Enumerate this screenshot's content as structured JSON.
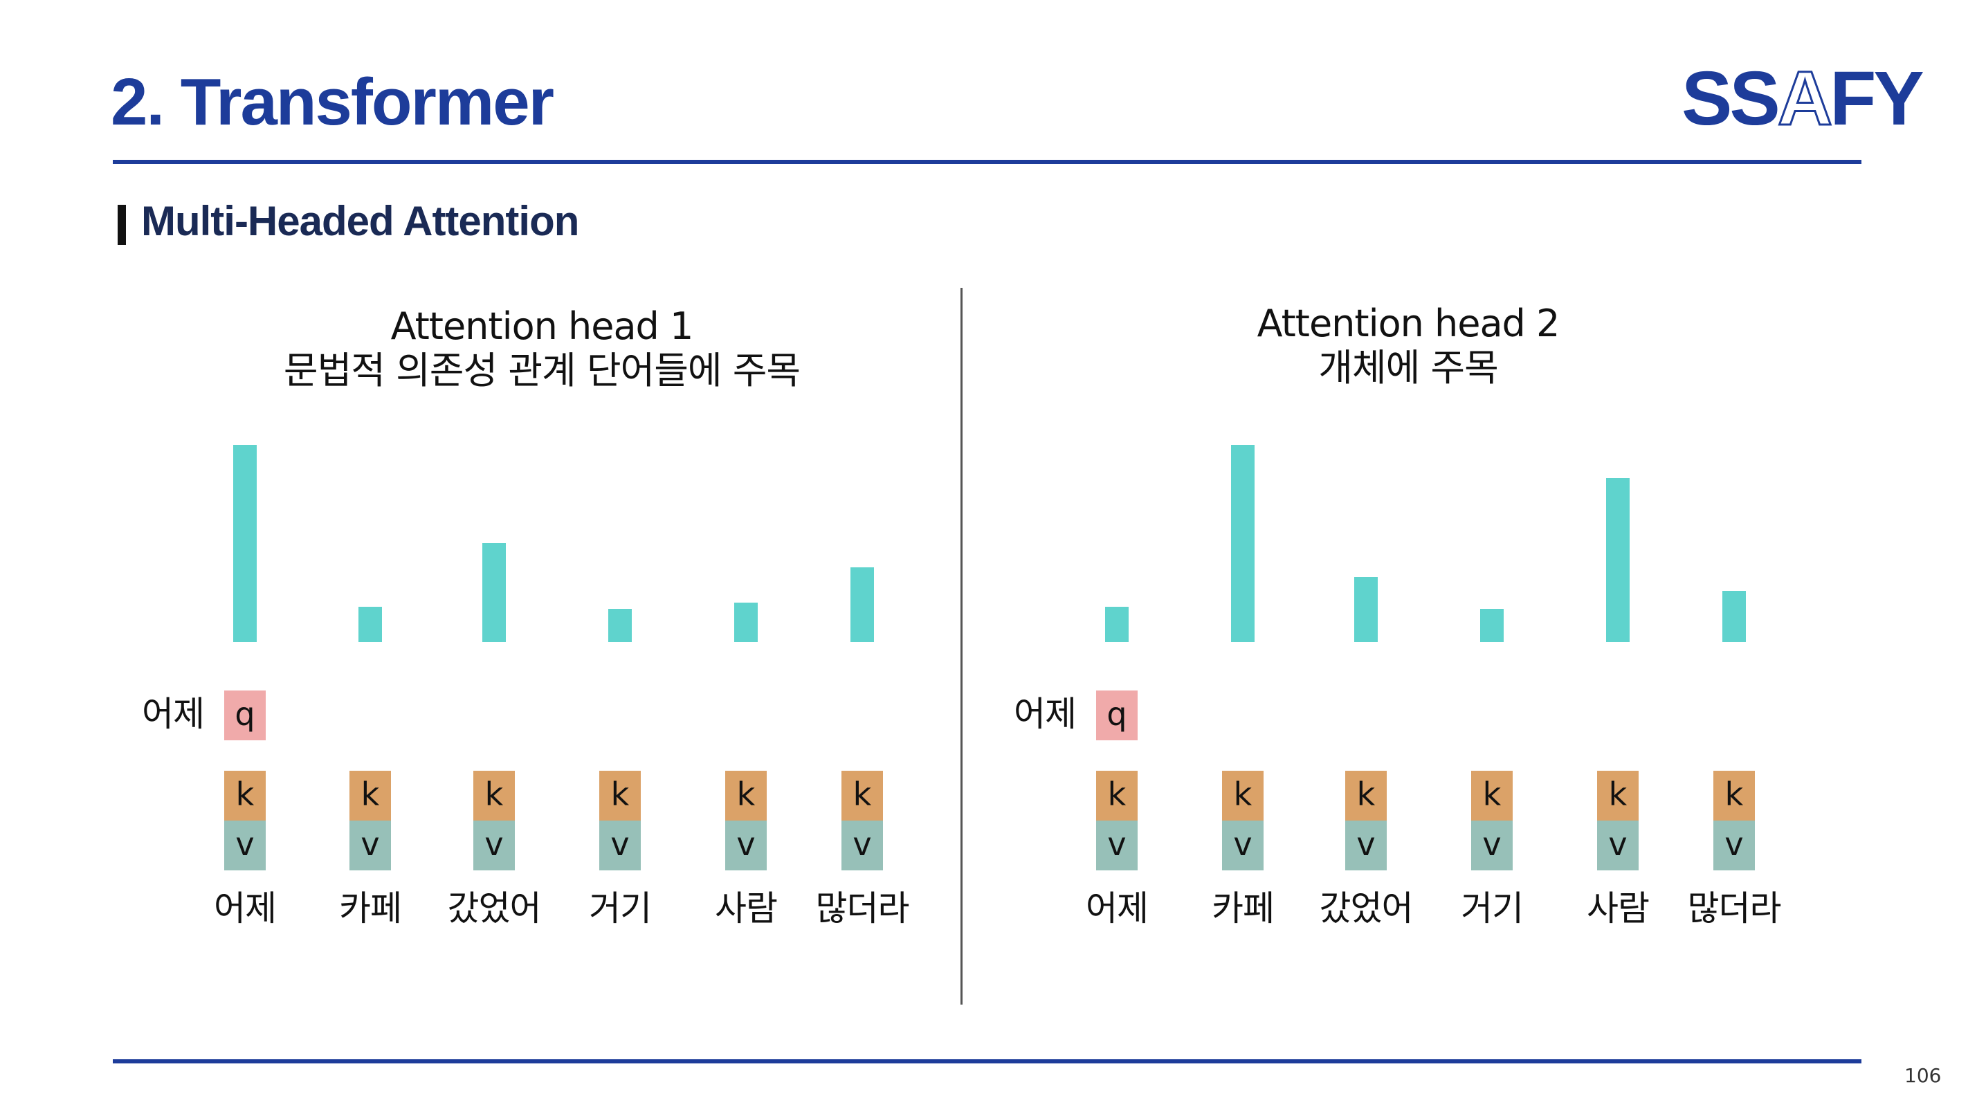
{
  "header": {
    "title": "2. Transformer",
    "logo": {
      "left": "SS",
      "middle": "A",
      "right": "FY"
    }
  },
  "section": {
    "title": "Multi-Headed Attention"
  },
  "colors": {
    "brand": "#1d3c9a",
    "bar": "#5fd3cd",
    "query": "#f0aaaa",
    "key": "#dba268",
    "value": "#97c0b8"
  },
  "query_label": "q",
  "key_label": "k",
  "value_label": "v",
  "words": [
    "어제",
    "카페",
    "갔었어",
    "거기",
    "사람",
    "많더라"
  ],
  "heads": [
    {
      "title_line1": "Attention head 1",
      "title_line2": "문법적 의존성 관계 단어들에 주목",
      "query_word": "어제",
      "weights": [
        1.0,
        0.18,
        0.5,
        0.17,
        0.2,
        0.38
      ]
    },
    {
      "title_line1": "Attention head 2",
      "title_line2": "개체에 주목",
      "query_word": "어제",
      "weights": [
        0.18,
        1.0,
        0.33,
        0.17,
        0.83,
        0.26
      ]
    }
  ],
  "page_number": "106"
}
